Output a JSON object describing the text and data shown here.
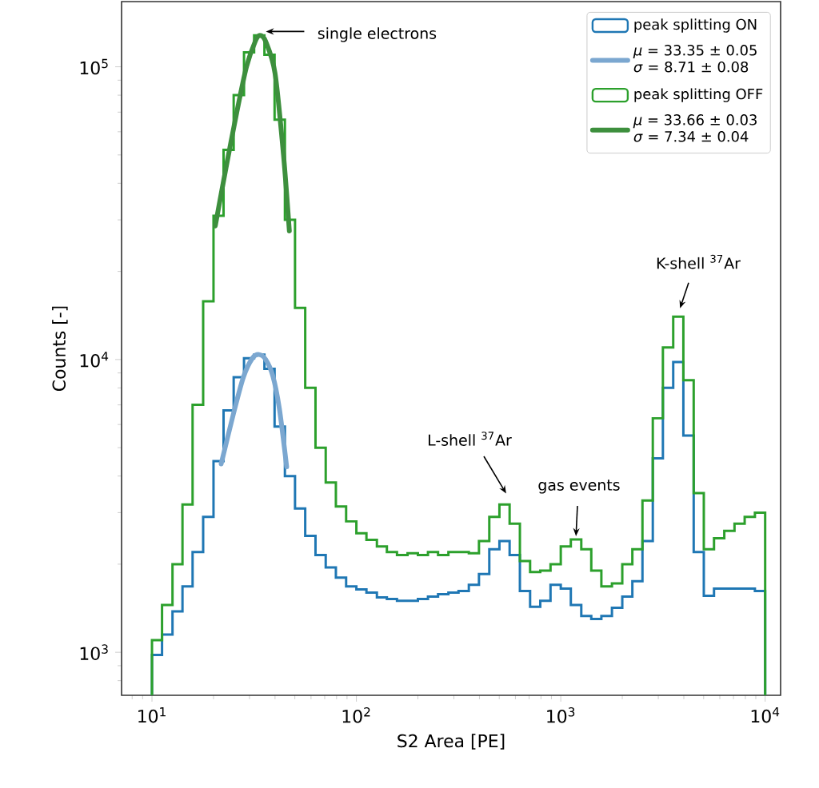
{
  "chart_data": {
    "type": "histogram",
    "xlabel": "S2 Area [PE]",
    "ylabel": "Counts [-]",
    "log": "xy",
    "legend": "top right",
    "xlim": [
      7.1,
      11900
    ],
    "ylim": [
      713,
      167000
    ],
    "xticks": [
      {
        "value": 10,
        "label": "10$^{1}$"
      },
      {
        "value": 100,
        "label": "10$^{2}$"
      },
      {
        "value": 1000,
        "label": "10$^{3}$"
      },
      {
        "value": 10000,
        "label": "10$^{4}$"
      }
    ],
    "yticks": [
      {
        "value": 1000,
        "label": "10$^{3}$"
      },
      {
        "value": 10000,
        "label": "10$^{4}$"
      },
      {
        "value": 100000,
        "label": "10$^{5}$"
      }
    ],
    "bins": [
      10,
      11.2,
      12.6,
      14.1,
      15.8,
      17.8,
      20,
      22.4,
      25.1,
      28.2,
      31.6,
      35.5,
      39.8,
      44.7,
      50.1,
      56.2,
      63.1,
      70.8,
      79.4,
      89.1,
      100,
      112,
      126,
      141,
      158,
      178,
      200,
      224,
      251,
      282,
      316,
      355,
      398,
      447,
      501,
      562,
      631,
      708,
      794,
      891,
      1000,
      1120,
      1260,
      1410,
      1580,
      1780,
      2000,
      2240,
      2510,
      2820,
      3160,
      3550,
      3980,
      4470,
      5010,
      5620,
      6310,
      7080,
      7940,
      8910,
      10000
    ],
    "series": [
      {
        "name": "peak splitting ON",
        "color": "#1f77b4",
        "values": [
          980,
          1150,
          1380,
          1680,
          2200,
          2900,
          4500,
          6700,
          8700,
          10100,
          10400,
          9300,
          5900,
          4000,
          3100,
          2500,
          2150,
          1950,
          1800,
          1680,
          1640,
          1600,
          1540,
          1520,
          1500,
          1500,
          1520,
          1550,
          1580,
          1600,
          1620,
          1700,
          1850,
          2250,
          2400,
          2150,
          1620,
          1430,
          1500,
          1700,
          1650,
          1450,
          1330,
          1300,
          1330,
          1420,
          1550,
          1750,
          2400,
          4600,
          8000,
          9800,
          5500,
          2200,
          1560,
          1650,
          1650,
          1650,
          1650,
          1620
        ]
      },
      {
        "name": "*μ* = 33.35 ± 0.05 *σ* = 8.71 ± 0.08",
        "type": "line",
        "color": "#7ba7d0",
        "x": [
          21.8,
          25,
          28,
          31,
          33.4,
          36,
          39,
          42,
          45.6
        ],
        "values": [
          4400,
          6500,
          8700,
          10100,
          10400,
          10000,
          8800,
          6800,
          4300
        ]
      },
      {
        "name": "peak splitting OFF",
        "color": "#2ca02c",
        "values": [
          1100,
          1450,
          2000,
          3200,
          7000,
          15800,
          31000,
          52000,
          80000,
          112000,
          128000,
          110000,
          66000,
          30000,
          15000,
          8000,
          5000,
          3800,
          3150,
          2800,
          2550,
          2420,
          2300,
          2200,
          2150,
          2180,
          2150,
          2200,
          2150,
          2200,
          2200,
          2180,
          2400,
          2900,
          3200,
          2750,
          2050,
          1880,
          1900,
          2000,
          2300,
          2430,
          2250,
          1900,
          1680,
          1720,
          2000,
          2250,
          3300,
          6300,
          11000,
          14000,
          8500,
          3500,
          2250,
          2450,
          2600,
          2750,
          2900,
          3000
        ]
      },
      {
        "name": "*μ* = 33.66 ± 0.03 *σ* = 7.34 ± 0.04",
        "type": "line",
        "color": "#3d8f3d",
        "x": [
          20.4,
          23,
          26,
          29,
          32,
          33.7,
          36,
          40,
          44,
          47
        ],
        "values": [
          28600,
          45000,
          70000,
          100000,
          122000,
          128000,
          122000,
          95000,
          50000,
          27500
        ]
      }
    ],
    "annotations": [
      {
        "text": "single electrons",
        "x": 34.8,
        "y": 132000
      },
      {
        "text": "L-shell $^{37}$Ar",
        "x": 551,
        "y": 3410
      },
      {
        "text": "gas events",
        "x": 1185,
        "y": 2430
      },
      {
        "text": "K-shell $^{37}$Ar",
        "x": 3790,
        "y": 14600
      }
    ]
  }
}
